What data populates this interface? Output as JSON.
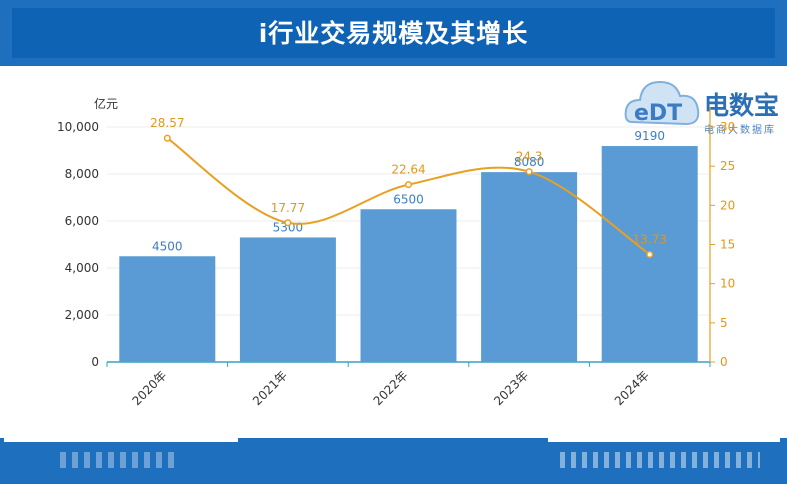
{
  "header": {
    "title": "i行业交易规模及其增长"
  },
  "logo": {
    "mark": "eDT",
    "name": "电数宝",
    "tagline": "电商大数据库"
  },
  "colors": {
    "bar": "#5b9bd5",
    "line": "#e8a020",
    "axis": "#3aa0c0",
    "barLabel": "#3a7fc4",
    "lineLabel": "#e0981a"
  },
  "chart_data": {
    "type": "bar",
    "categories": [
      "2020年",
      "2021年",
      "2022年",
      "2023年",
      "2024年"
    ],
    "series": [
      {
        "values": [
          4500,
          5300,
          6500,
          8080,
          9190
        ],
        "type": "bar",
        "axis": "left"
      },
      {
        "values": [
          28.57,
          17.77,
          22.64,
          24.3,
          13.73
        ],
        "type": "line",
        "axis": "right"
      }
    ],
    "ylabel": "亿元",
    "ylim": [
      0,
      10000
    ],
    "yticks": [
      "0",
      "2,000",
      "4,000",
      "6,000",
      "8,000",
      "10,000"
    ],
    "y2lim": [
      0,
      30
    ],
    "y2ticks": [
      "0",
      "5",
      "10",
      "15",
      "20",
      "25",
      "30"
    ],
    "grid": true
  }
}
